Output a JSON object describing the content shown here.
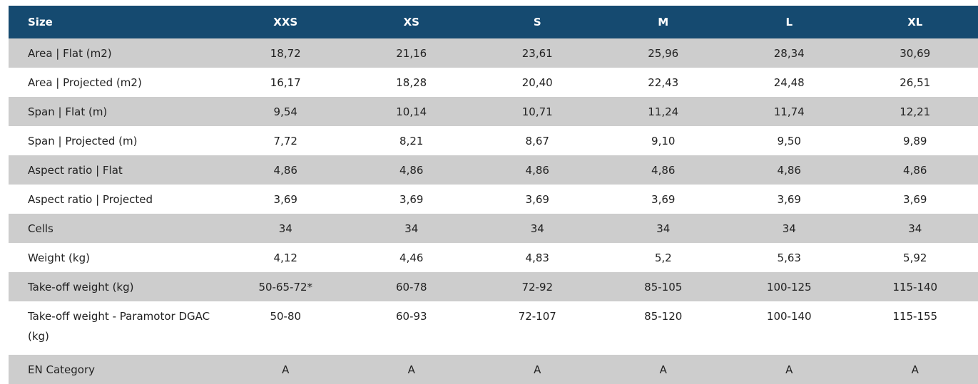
{
  "table": {
    "header": [
      "Size",
      "XXS",
      "XS",
      "S",
      "M",
      "L",
      "XL"
    ],
    "rows": [
      [
        "Area | Flat (m2)",
        "18,72",
        "21,16",
        "23,61",
        "25,96",
        "28,34",
        "30,69"
      ],
      [
        "Area | Projected (m2)",
        "16,17",
        "18,28",
        "20,40",
        "22,43",
        "24,48",
        "26,51"
      ],
      [
        "Span | Flat (m)",
        "9,54",
        "10,14",
        "10,71",
        "11,24",
        "11,74",
        "12,21"
      ],
      [
        "Span | Projected (m)",
        "7,72",
        "8,21",
        "8,67",
        "9,10",
        "9,50",
        "9,89"
      ],
      [
        "Aspect ratio | Flat",
        "4,86",
        "4,86",
        "4,86",
        "4,86",
        "4,86",
        "4,86"
      ],
      [
        "Aspect ratio | Projected",
        "3,69",
        "3,69",
        "3,69",
        "3,69",
        "3,69",
        "3,69"
      ],
      [
        "Cells",
        "34",
        "34",
        "34",
        "34",
        "34",
        "34"
      ],
      [
        "Weight (kg)",
        "4,12",
        "4,46",
        "4,83",
        "5,2",
        "5,63",
        "5,92"
      ],
      [
        "Take-off weight (kg)",
        "50-65-72*",
        "60-78",
        "72-92",
        "85-105",
        "100-125",
        "115-140"
      ],
      [
        "Take-off weight - Paramotor DGAC (kg)",
        "50-80",
        "60-93",
        "72-107",
        "85-120",
        "100-140",
        "115-155"
      ],
      [
        "EN Category",
        "A",
        "A",
        "A",
        "A",
        "A",
        "A"
      ]
    ]
  },
  "colors": {
    "header_bg": "#154a70",
    "header_text": "#ffffff",
    "row_shaded": "#cdcdcd",
    "row_plain": "#ffffff"
  }
}
